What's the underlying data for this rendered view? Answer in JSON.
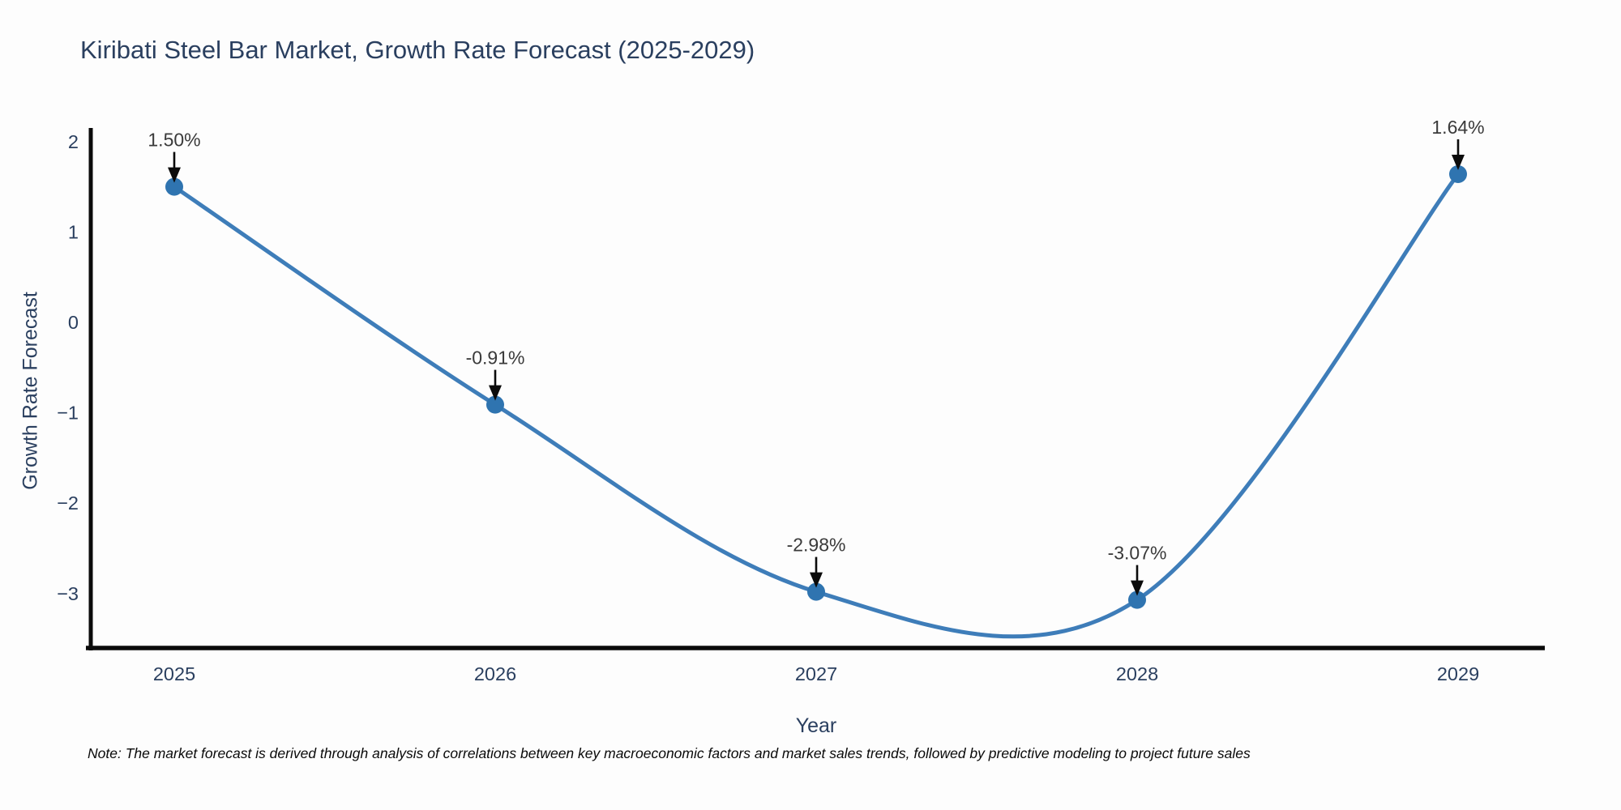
{
  "chart_data": {
    "type": "line",
    "title": "Kiribati Steel Bar Market, Growth Rate Forecast (2025-2029)",
    "xlabel": "Year",
    "ylabel": "Growth Rate Forecast",
    "x": [
      2025,
      2026,
      2027,
      2028,
      2029
    ],
    "series": [
      {
        "name": "Growth Rate Forecast",
        "values": [
          1.5,
          -0.91,
          -2.98,
          -3.07,
          1.64
        ],
        "point_labels": [
          "1.50%",
          "-0.91%",
          "-2.98%",
          "-3.07%",
          "1.64%"
        ]
      }
    ],
    "x_tick_labels": [
      "2025",
      "2026",
      "2027",
      "2028",
      "2029"
    ],
    "y_ticks": [
      {
        "value": 2,
        "label": "2"
      },
      {
        "value": 1,
        "label": "1"
      },
      {
        "value": 0,
        "label": "0"
      },
      {
        "value": -1,
        "label": "−1"
      },
      {
        "value": -2,
        "label": "−2"
      },
      {
        "value": -3,
        "label": "−3"
      }
    ],
    "ylim": [
      -3.55,
      2.15
    ],
    "xlim": [
      2024.72,
      2029.27
    ],
    "grid": false,
    "legend_position": "none",
    "line_style": "spline",
    "annotations_have_arrows": true,
    "note": "Note: The market forecast is derived through analysis of correlations between key macroeconomic factors and market sales trends, followed by predictive modeling to project future sales",
    "colors": {
      "line": "#3e7db9",
      "marker": "#2f74b0",
      "axis_line": "#0b0b0b",
      "arrow": "#0b0b0b",
      "tick_text": "#2a3f5f",
      "annotation_text": "#3a3a3a",
      "title_text": "#2a3f5f",
      "background": "#fdfdfd"
    }
  }
}
